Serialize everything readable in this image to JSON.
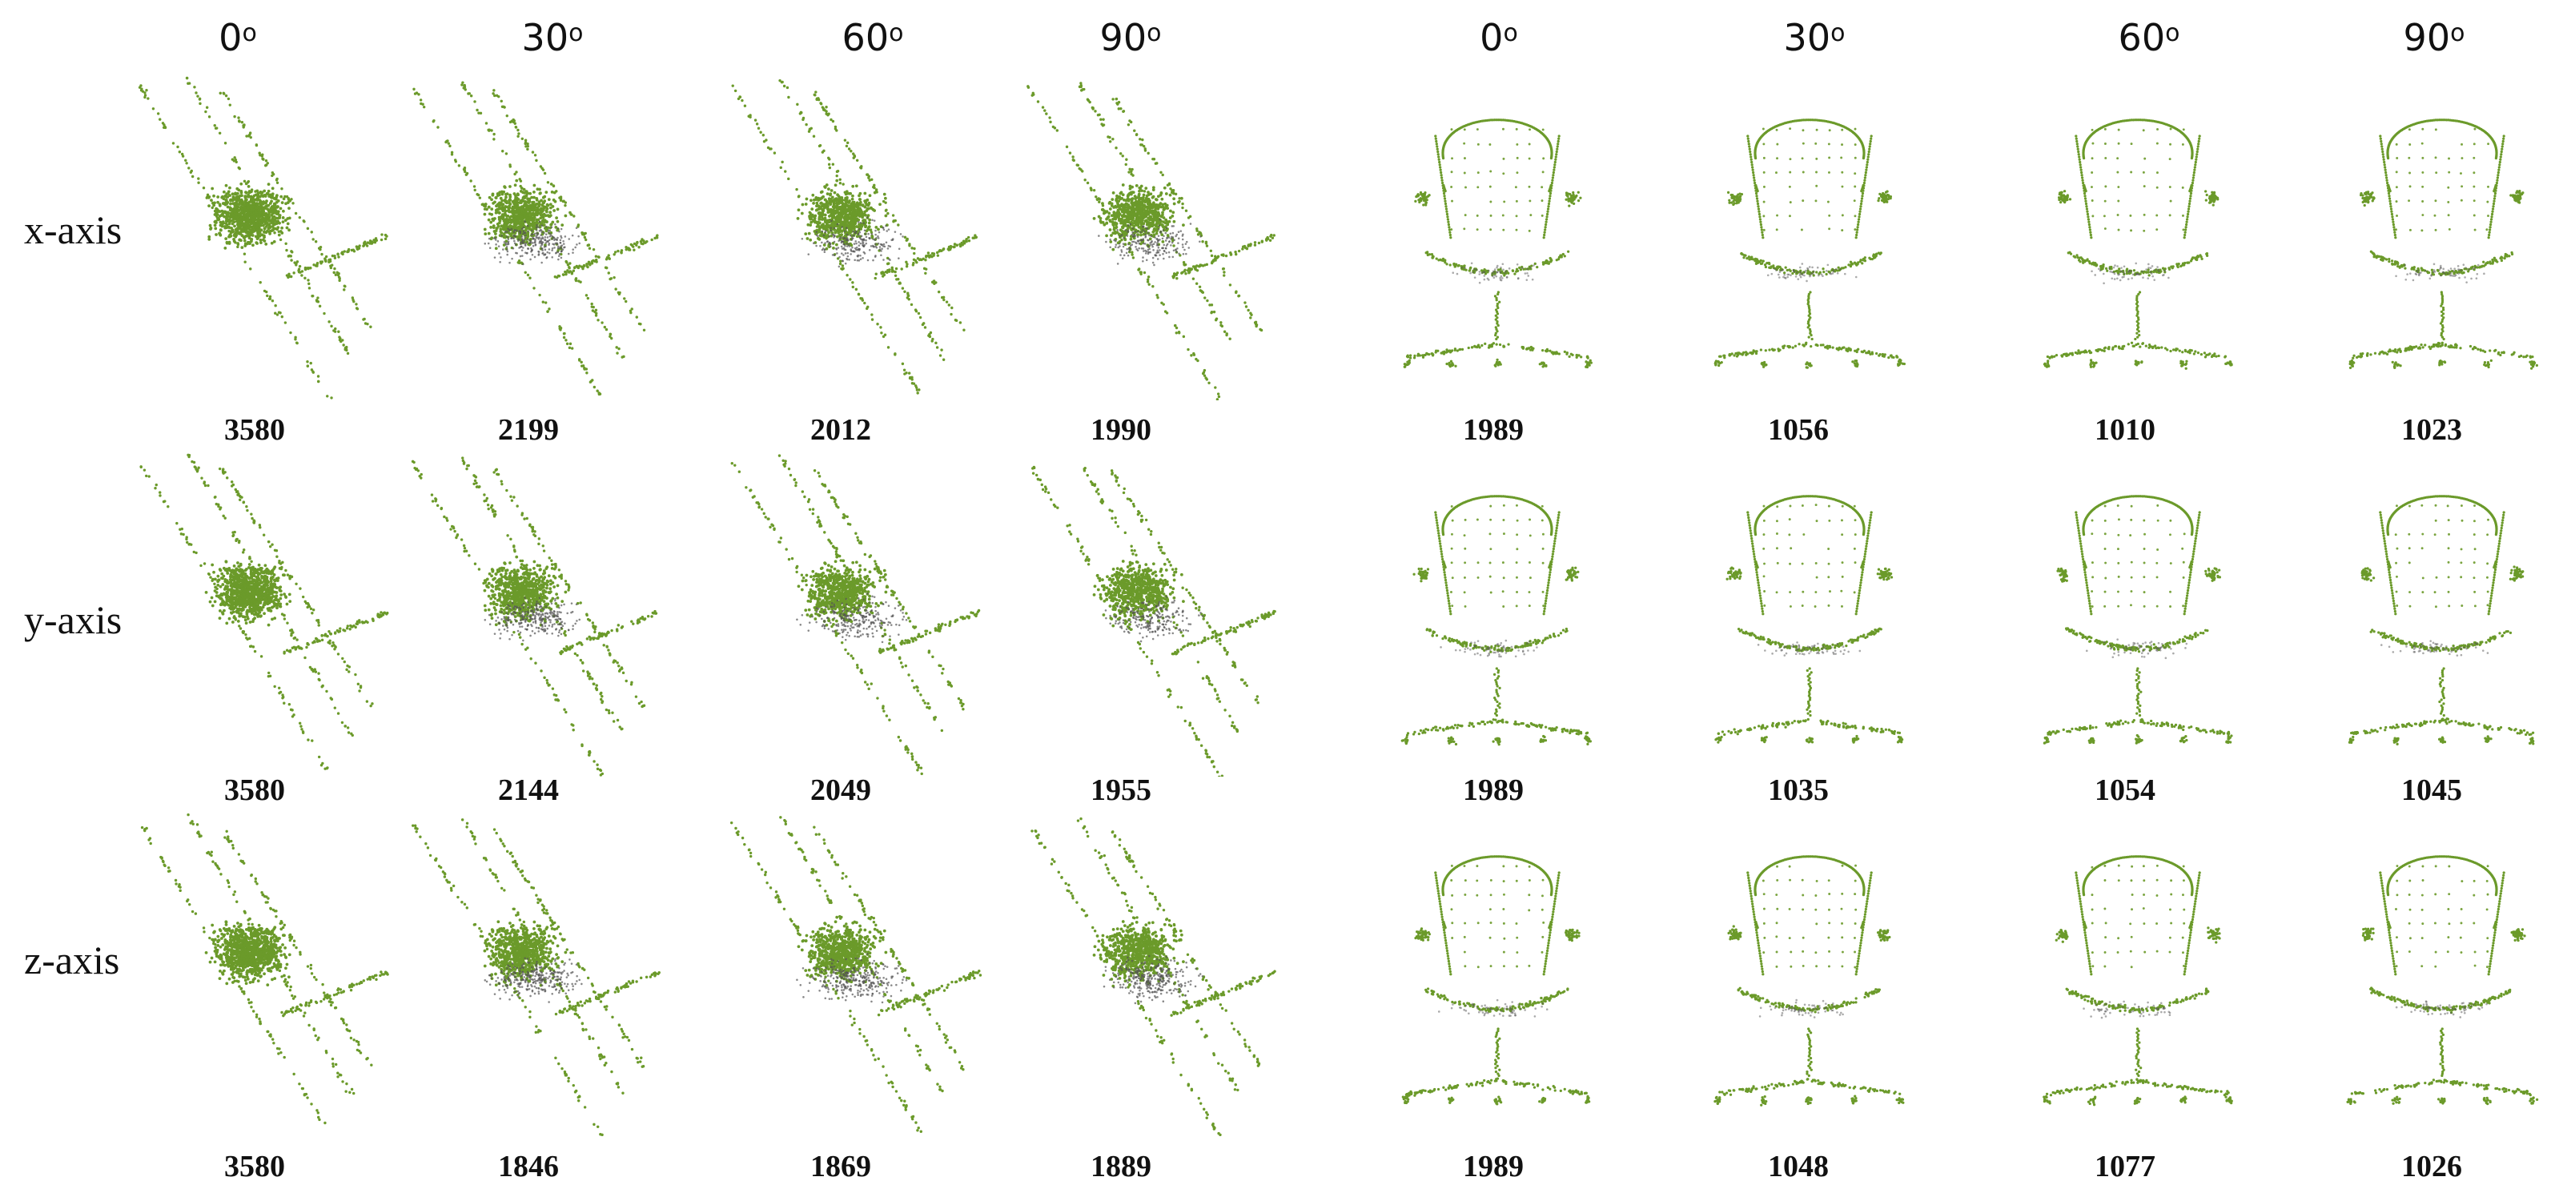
{
  "headers": {
    "left": [
      {
        "num": "0",
        "deg": "o"
      },
      {
        "num": "30",
        "deg": "o"
      },
      {
        "num": "60",
        "deg": "o"
      },
      {
        "num": "90",
        "deg": "o"
      }
    ],
    "right": [
      {
        "num": "0",
        "deg": "o"
      },
      {
        "num": "30",
        "deg": "o"
      },
      {
        "num": "60",
        "deg": "o"
      },
      {
        "num": "90",
        "deg": "o"
      }
    ]
  },
  "axes": [
    "x-axis",
    "y-axis",
    "z-axis"
  ],
  "counts": {
    "left": [
      [
        "3580",
        "2199",
        "2012",
        "1990"
      ],
      [
        "3580",
        "2144",
        "2049",
        "1955"
      ],
      [
        "3580",
        "1846",
        "1869",
        "1889"
      ]
    ],
    "right": [
      [
        "1989",
        "1056",
        "1010",
        "1023"
      ],
      [
        "1989",
        "1035",
        "1054",
        "1045"
      ],
      [
        "1989",
        "1048",
        "1077",
        "1026"
      ]
    ]
  },
  "colors": {
    "point": "#6b9a2a",
    "dark_point": "#555555",
    "background": "#ffffff",
    "text": "#111111"
  }
}
